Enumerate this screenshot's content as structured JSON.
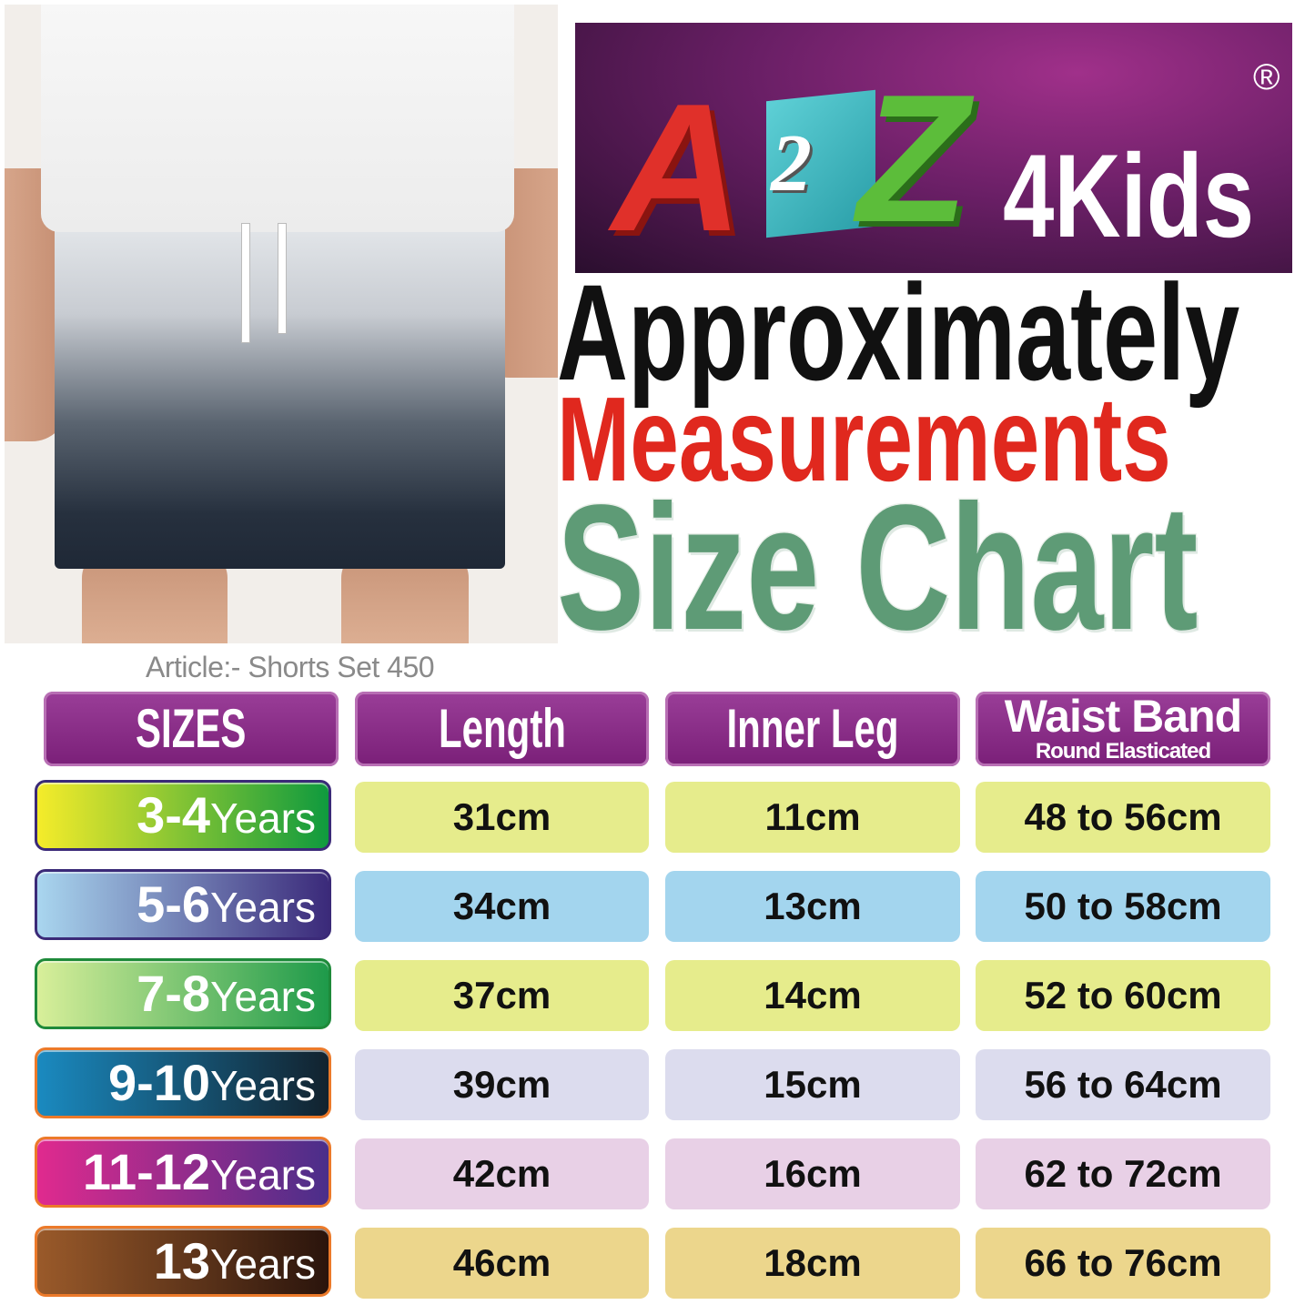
{
  "brand": {
    "logo_text": "A2Z4Kids",
    "registered_mark": "®"
  },
  "title": {
    "line1": "Approximately",
    "line2": "Measurements",
    "line3": "Size Chart"
  },
  "article": "Article:- Shorts Set 450",
  "headers": {
    "sizes": "SIZES",
    "length": "Length",
    "inner_leg": "Inner Leg",
    "waist_band": "Waist Band",
    "waist_band_sub": "Round Elasticated"
  },
  "rows": [
    {
      "size": "3-4",
      "unit": "Years",
      "length": "31cm",
      "inner_leg": "11cm",
      "waist": "48 to 56cm",
      "badge_from": "#f5ec2a",
      "badge_to": "#0f9a3e",
      "border": "#3b2a78",
      "cell": "#e6ec8c"
    },
    {
      "size": "5-6",
      "unit": "Years",
      "length": "34cm",
      "inner_leg": "13cm",
      "waist": "50 to 58cm",
      "badge_from": "#a9d6ef",
      "badge_to": "#3b2a7a",
      "border": "#3b2a78",
      "cell": "#a3d5ee"
    },
    {
      "size": "7-8",
      "unit": "Years",
      "length": "37cm",
      "inner_leg": "14cm",
      "waist": "52 to 60cm",
      "badge_from": "#d8ef9a",
      "badge_to": "#1e9a4a",
      "border": "#1e8a3a",
      "cell": "#e6ec8c"
    },
    {
      "size": "9-10",
      "unit": "Years",
      "length": "39cm",
      "inner_leg": "15cm",
      "waist": "56 to 64cm",
      "badge_from": "#1a8ac0",
      "badge_to": "#12222e",
      "border": "#ec7a2a",
      "cell": "#dcdcee"
    },
    {
      "size": "11-12",
      "unit": "Years",
      "length": "42cm",
      "inner_leg": "16cm",
      "waist": "62 to 72cm",
      "badge_from": "#e02a8e",
      "badge_to": "#4a2e8a",
      "border": "#ec7a2a",
      "cell": "#e8d0e6"
    },
    {
      "size": "13",
      "unit": "Years",
      "length": "46cm",
      "inner_leg": "18cm",
      "waist": "66 to 76cm",
      "badge_from": "#9a5a2a",
      "badge_to": "#2a140c",
      "border": "#ec7a2a",
      "cell": "#ecd68c"
    }
  ],
  "colors": {
    "header": "#8a2a88",
    "title_black": "#111111",
    "title_red": "#e0281e",
    "title_green": "#5e9b76"
  }
}
